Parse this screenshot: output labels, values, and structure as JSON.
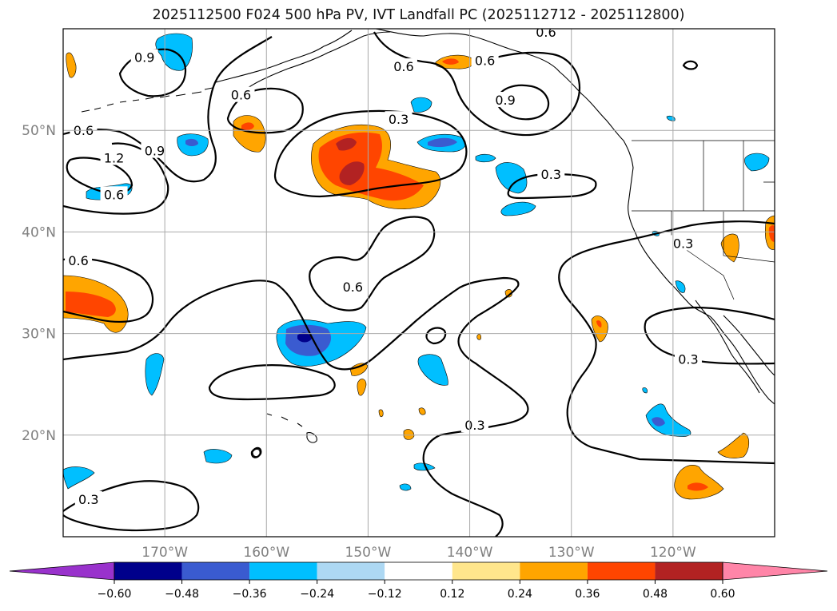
{
  "title": "2025112500 F024 500 hPa PV, IVT Landfall PC (2025112712 - 2025112800)",
  "map": {
    "region": "North Pacific / US West Coast",
    "lon_range": [
      -180,
      -110
    ],
    "lat_range": [
      10,
      60
    ],
    "lon_ticks": [
      {
        "value": -170,
        "label": "170°W"
      },
      {
        "value": -160,
        "label": "160°W"
      },
      {
        "value": -150,
        "label": "150°W"
      },
      {
        "value": -140,
        "label": "140°W"
      },
      {
        "value": -130,
        "label": "130°W"
      },
      {
        "value": -120,
        "label": "120°W"
      }
    ],
    "lat_ticks": [
      {
        "value": 20,
        "label": "20°N"
      },
      {
        "value": 30,
        "label": "30°N"
      },
      {
        "value": 40,
        "label": "40°N"
      },
      {
        "value": 50,
        "label": "50°N"
      }
    ],
    "grid": true,
    "tick_label_color": "#808080",
    "contour_labels": [
      {
        "text": "0.6",
        "lon": -178,
        "lat": 50.0
      },
      {
        "text": "1.2",
        "lon": -175,
        "lat": 47.3
      },
      {
        "text": "0.9",
        "lon": -171,
        "lat": 48.0
      },
      {
        "text": "0.6",
        "lon": -175,
        "lat": 43.7
      },
      {
        "text": "0.9",
        "lon": -172,
        "lat": 57.2
      },
      {
        "text": "0.6",
        "lon": -162.5,
        "lat": 53.5
      },
      {
        "text": "0.3",
        "lon": -147,
        "lat": 51.1
      },
      {
        "text": "0.6",
        "lon": -146.5,
        "lat": 56.3
      },
      {
        "text": "0.6",
        "lon": -138.5,
        "lat": 56.9
      },
      {
        "text": "0.9",
        "lon": -136.5,
        "lat": 53.0
      },
      {
        "text": "0.6",
        "lon": -132.5,
        "lat": 59.7
      },
      {
        "text": "0.3",
        "lon": -132,
        "lat": 45.7
      },
      {
        "text": "0.6",
        "lon": -178.5,
        "lat": 37.2
      },
      {
        "text": "0.6",
        "lon": -151.5,
        "lat": 34.6
      },
      {
        "text": "0.3",
        "lon": -119,
        "lat": 38.9
      },
      {
        "text": "0.3",
        "lon": -118.5,
        "lat": 27.5
      },
      {
        "text": "0.3",
        "lon": -139.5,
        "lat": 21.0
      },
      {
        "text": "0.3",
        "lon": -177.5,
        "lat": 13.7
      }
    ]
  },
  "colorbar": {
    "ticks": [
      "−0.60",
      "−0.48",
      "−0.36",
      "−0.24",
      "−0.12",
      "0.12",
      "0.24",
      "0.36",
      "0.48",
      "0.60"
    ],
    "colors": [
      "#9932cc",
      "#00008b",
      "#3a5bd0",
      "#00bfff",
      "#add8f3",
      "#ffffff",
      "#ffe68c",
      "#ffa500",
      "#ff4500",
      "#b22222",
      "#ff85a8"
    ],
    "extend": "both"
  }
}
